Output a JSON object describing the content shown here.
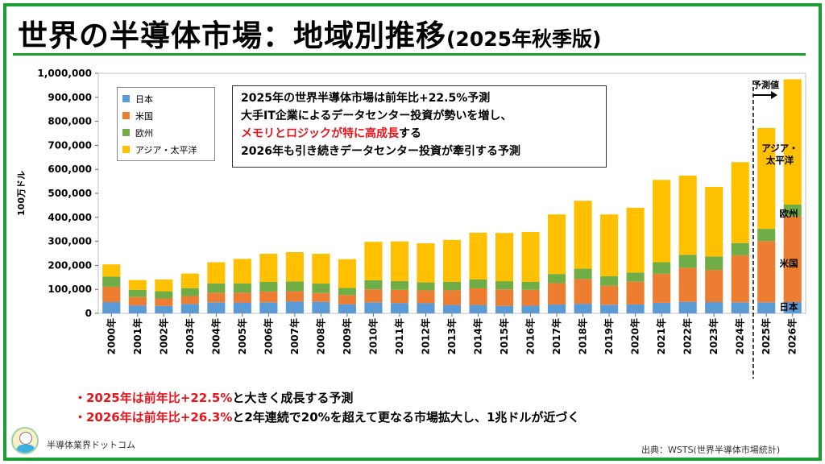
{
  "header": {
    "title": "世界の半導体市場：地域別推移",
    "subtitle": "(2025年秋季版)"
  },
  "infobox": {
    "line1": "2025年の世界半導体市場は前年比+22.5%予測",
    "line2": "大手IT企業によるデータセンター投資が勢いを増し、",
    "line3_red": "メモリとロジックが特に高成長",
    "line3_rest": "する",
    "line4": "2026年も引き続きデータセンター投資が牽引する予測"
  },
  "forecast_label": "予測値",
  "segment_labels": {
    "asia": "アジア・\n太平洋",
    "europe": "欧州",
    "americas": "米国",
    "japan": "日本"
  },
  "bullets": {
    "b1_red": "・2025年は前年比+22.5%",
    "b1_rest": "と大きく成長する予測",
    "b2_red": "・2026年は前年比+26.3%",
    "b2_rest": "と2年連続で20%を超えて更なる市場拡大し、1兆ドルが近づく"
  },
  "footer": {
    "brand": "半導体業界ドットコム",
    "source": "出典：WSTS(世界半導体市場統計)"
  },
  "colors": {
    "japan": "#5b9bd5",
    "americas": "#ed7d31",
    "europe": "#70ad47",
    "asia": "#ffc000",
    "frame": "#1a9e33"
  },
  "chart_data": {
    "type": "bar",
    "stacked": true,
    "ylabel": "100万ドル",
    "ylim": [
      0,
      1000000
    ],
    "yticks": [
      "0",
      "100,000",
      "200,000",
      "300,000",
      "400,000",
      "500,000",
      "600,000",
      "700,000",
      "800,000",
      "900,000",
      "1,000,000"
    ],
    "categories": [
      "2000年",
      "2001年",
      "2002年",
      "2003年",
      "2004年",
      "2005年",
      "2006年",
      "2007年",
      "2008年",
      "2009年",
      "2010年",
      "2011年",
      "2012年",
      "2013年",
      "2014年",
      "2015年",
      "2016年",
      "2017年",
      "2018年",
      "2019年",
      "2020年",
      "2021年",
      "2022年",
      "2023年",
      "2024年",
      "2025年",
      "2026年"
    ],
    "forecast_start": "2025年",
    "series": [
      {
        "name": "日本",
        "key": "japan",
        "values": [
          47000,
          33000,
          31000,
          39000,
          46000,
          45000,
          46000,
          49000,
          48000,
          38000,
          46000,
          43000,
          42000,
          35000,
          35000,
          31000,
          32000,
          37000,
          40000,
          36000,
          37000,
          44000,
          48000,
          47000,
          46000,
          46000,
          47000
        ]
      },
      {
        "name": "米国",
        "key": "americas",
        "values": [
          64000,
          35000,
          31000,
          33000,
          40000,
          41000,
          45000,
          43000,
          37000,
          38000,
          54000,
          55000,
          54000,
          61000,
          69000,
          69000,
          66000,
          89000,
          103000,
          79000,
          95000,
          121000,
          142000,
          134000,
          196000,
          255000,
          357000
        ]
      },
      {
        "name": "欧州",
        "key": "europe",
        "values": [
          42000,
          30000,
          30000,
          33000,
          39000,
          39000,
          40000,
          41000,
          39000,
          30000,
          38000,
          37000,
          33000,
          35000,
          37000,
          34000,
          33000,
          38000,
          43000,
          40000,
          38000,
          48000,
          54000,
          56000,
          51000,
          51000,
          49000
        ]
      },
      {
        "name": "アジア・太平洋",
        "key": "asia",
        "values": [
          51000,
          41000,
          49000,
          61000,
          88000,
          102000,
          117000,
          122000,
          124000,
          120000,
          160000,
          165000,
          163000,
          175000,
          195000,
          201000,
          208000,
          248000,
          283000,
          257000,
          270000,
          343000,
          330000,
          290000,
          337000,
          420000,
          522000
        ]
      }
    ]
  }
}
